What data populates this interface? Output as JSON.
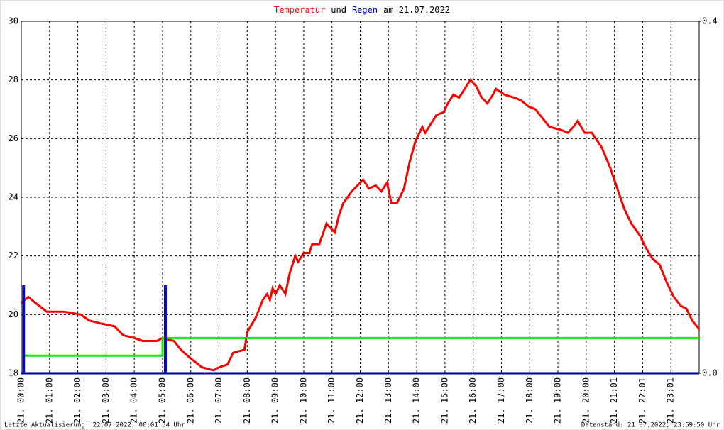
{
  "chart_data": {
    "type": "line",
    "title": [
      "Temperatur",
      "und",
      "Regen",
      "am 21.07.2022"
    ],
    "title_colors": [
      "#ff0000",
      "#000000",
      "#0000c0",
      "#000000"
    ],
    "annotations": [
      "Letzte Aktualisierung: 22.07.2022, 00:01:34 Uhr",
      "Datenstand: 21.07.2022, 23:59:50 Uhr"
    ],
    "xlim": [
      0,
      24
    ],
    "xticks": [
      {
        "value": 0,
        "label": "21. 00:00"
      },
      {
        "value": 1,
        "label": "21. 01:00"
      },
      {
        "value": 2,
        "label": "21. 02:00"
      },
      {
        "value": 3,
        "label": "21. 03:00"
      },
      {
        "value": 4,
        "label": "21. 04:00"
      },
      {
        "value": 5,
        "label": "21. 05:00"
      },
      {
        "value": 6,
        "label": "21. 06:00"
      },
      {
        "value": 7,
        "label": "21. 07:00"
      },
      {
        "value": 8,
        "label": "21. 08:00"
      },
      {
        "value": 9,
        "label": "21. 09:00"
      },
      {
        "value": 10,
        "label": "21. 10:00"
      },
      {
        "value": 11,
        "label": "21. 11:00"
      },
      {
        "value": 12,
        "label": "21. 12:00"
      },
      {
        "value": 13,
        "label": "21. 13:00"
      },
      {
        "value": 14,
        "label": "21. 14:00"
      },
      {
        "value": 15,
        "label": "21. 15:00"
      },
      {
        "value": 16,
        "label": "21. 16:00"
      },
      {
        "value": 17,
        "label": "21. 17:00"
      },
      {
        "value": 18,
        "label": "21. 18:00"
      },
      {
        "value": 19,
        "label": "21. 19:00"
      },
      {
        "value": 20,
        "label": "21. 20:00"
      },
      {
        "value": 21,
        "label": "21. 21:01"
      },
      {
        "value": 22,
        "label": "21. 22:01"
      },
      {
        "value": 23,
        "label": "21. 23:01"
      }
    ],
    "ylim": [
      18,
      30
    ],
    "yticks": [
      18,
      20,
      22,
      24,
      26,
      28,
      30
    ],
    "y2lim": [
      0,
      0.4
    ],
    "y2ticks": [
      {
        "value": 0,
        "label": "0.0"
      },
      0.4
    ],
    "grid": true,
    "series": [
      {
        "type": "line",
        "color": "#ff0000",
        "x": [
          0,
          0.25,
          0.5,
          0.9,
          1.5,
          2.1,
          2.4,
          2.8,
          3.3,
          3.6,
          4.0,
          4.3,
          4.8,
          5.0,
          5.4,
          5.65,
          6.0,
          6.4,
          6.8,
          7.0,
          7.3,
          7.5,
          7.9,
          8.0,
          8.3,
          8.55,
          8.7,
          8.8,
          8.9,
          9.0,
          9.15,
          9.35,
          9.5,
          9.7,
          9.8,
          10.0,
          10.2,
          10.3,
          10.55,
          10.8,
          10.9,
          11.1,
          11.25,
          11.4,
          11.7,
          11.9,
          12.1,
          12.3,
          12.55,
          12.75,
          12.95,
          13.1,
          13.3,
          13.55,
          13.75,
          13.95,
          14.2,
          14.3,
          14.5,
          14.7,
          14.95,
          15.1,
          15.3,
          15.5,
          15.7,
          15.9,
          16.1,
          16.3,
          16.5,
          16.7,
          16.8,
          17.1,
          17.45,
          17.7,
          17.95,
          18.2,
          18.45,
          18.7,
          19.1,
          19.35,
          19.55,
          19.7,
          19.95,
          20.2,
          20.55,
          20.85,
          21.1,
          21.35,
          21.6,
          21.9,
          22.1,
          22.35,
          22.6,
          22.85,
          23.1,
          23.35,
          23.55,
          23.75,
          24.0
        ],
        "values": [
          20.4,
          20.6,
          20.4,
          20.1,
          20.1,
          20.0,
          19.8,
          19.7,
          19.6,
          19.3,
          19.2,
          19.1,
          19.1,
          19.2,
          19.1,
          18.8,
          18.5,
          18.2,
          18.1,
          18.2,
          18.3,
          18.7,
          18.8,
          19.4,
          19.9,
          20.5,
          20.7,
          20.5,
          20.9,
          20.7,
          21.0,
          20.7,
          21.4,
          22.0,
          21.8,
          22.1,
          22.1,
          22.4,
          22.4,
          23.1,
          23.0,
          22.8,
          23.4,
          23.8,
          24.2,
          24.4,
          24.6,
          24.3,
          24.4,
          24.2,
          24.5,
          23.8,
          23.8,
          24.3,
          25.2,
          25.9,
          26.4,
          26.2,
          26.5,
          26.8,
          26.9,
          27.2,
          27.5,
          27.4,
          27.7,
          28.0,
          27.8,
          27.4,
          27.2,
          27.5,
          27.7,
          27.5,
          27.4,
          27.3,
          27.1,
          27.0,
          26.7,
          26.4,
          26.3,
          26.2,
          26.4,
          26.6,
          26.2,
          26.2,
          25.7,
          25.0,
          24.3,
          23.6,
          23.1,
          22.7,
          22.3,
          21.9,
          21.7,
          21.1,
          20.6,
          20.3,
          20.2,
          19.8,
          19.5
        ]
      },
      {
        "type": "line",
        "color": "#00ee00",
        "axis": "y2",
        "x": [
          0.1,
          5.0,
          5.0,
          24
        ],
        "values": [
          0.02,
          0.02,
          0.04,
          0.04
        ]
      },
      {
        "type": "bar",
        "color": "#0000dd",
        "axis": "y2",
        "x": [
          0.08,
          5.1
        ],
        "values": [
          0.1,
          0.1
        ]
      }
    ]
  }
}
